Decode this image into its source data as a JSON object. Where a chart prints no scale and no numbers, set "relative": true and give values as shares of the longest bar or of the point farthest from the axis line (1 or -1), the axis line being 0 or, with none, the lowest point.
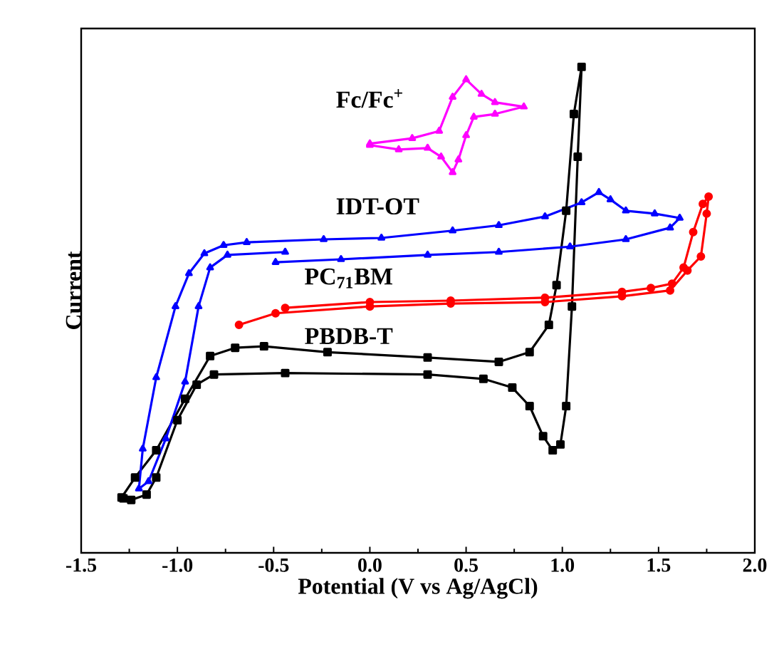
{
  "chart_data": {
    "type": "line",
    "xlabel": "Potential (V vs Ag/AgCl)",
    "ylabel": "Current",
    "relative": true,
    "tick_labels": "x",
    "xlim": [
      -1.5,
      2.0
    ],
    "xticks": [
      -1.5,
      {
        "value": -1.0,
        "label": "-1.0"
      },
      -0.5,
      {
        "value": 0.0,
        "label": "0.0"
      },
      0.5,
      {
        "value": 1.0,
        "label": "1.0"
      },
      1.5,
      {
        "value": 2.0,
        "label": "2.0"
      }
    ],
    "line_style": "solid",
    "series": [
      {
        "name": "PBDB-T",
        "color": "#000000",
        "marker": "square",
        "x": [
          -1.29,
          -1.22,
          -1.11,
          -0.96,
          -0.83,
          -0.7,
          -0.55,
          -0.22,
          0.3,
          0.67,
          0.83,
          0.93,
          0.97,
          1.02,
          1.06,
          1.1,
          1.08,
          1.05,
          1.02,
          0.99,
          0.95,
          0.9,
          0.83,
          0.74,
          0.59,
          0.3,
          -0.44,
          -0.81,
          -0.9,
          -1.0,
          -1.11,
          -1.16,
          -1.24,
          -1.28
        ],
        "values": [
          0.114,
          0.155,
          0.211,
          0.317,
          0.405,
          0.422,
          0.425,
          0.413,
          0.402,
          0.393,
          0.413,
          0.469,
          0.551,
          0.704,
          0.903,
          1.0,
          0.815,
          0.507,
          0.302,
          0.223,
          0.211,
          0.24,
          0.302,
          0.34,
          0.358,
          0.367,
          0.37,
          0.367,
          0.346,
          0.273,
          0.155,
          0.12,
          0.109,
          0.112
        ]
      },
      {
        "name": "PC$_{71}$BM",
        "color": "#ff0000",
        "marker": "circle",
        "x": [
          -0.68,
          -0.49,
          0.0,
          0.42,
          0.91,
          1.31,
          1.56,
          1.65,
          1.72,
          1.75,
          1.76,
          1.73,
          1.68,
          1.63,
          1.57,
          1.46,
          1.31,
          0.91,
          0.42,
          0.0,
          -0.44
        ],
        "values": [
          0.469,
          0.493,
          0.507,
          0.513,
          0.516,
          0.528,
          0.54,
          0.581,
          0.61,
          0.698,
          0.733,
          0.718,
          0.66,
          0.587,
          0.554,
          0.545,
          0.537,
          0.525,
          0.519,
          0.516,
          0.504
        ]
      },
      {
        "name": "IDT-OT",
        "color": "#0000ff",
        "marker": "triangle",
        "x": [
          -0.49,
          -0.15,
          0.3,
          0.67,
          1.04,
          1.33,
          1.56,
          1.61,
          1.48,
          1.33,
          1.25,
          1.19,
          1.1,
          0.91,
          0.67,
          0.43,
          0.06,
          -0.24,
          -0.64,
          -0.76,
          -0.86,
          -0.94,
          -1.01,
          -1.11,
          -1.18,
          -1.2,
          -1.15,
          -1.06,
          -0.96,
          -0.89,
          -0.83,
          -0.74,
          -0.44
        ],
        "values": [
          0.598,
          0.604,
          0.613,
          0.619,
          0.63,
          0.645,
          0.669,
          0.689,
          0.698,
          0.704,
          0.727,
          0.742,
          0.721,
          0.692,
          0.674,
          0.663,
          0.648,
          0.645,
          0.639,
          0.633,
          0.616,
          0.575,
          0.507,
          0.361,
          0.214,
          0.132,
          0.147,
          0.235,
          0.352,
          0.507,
          0.587,
          0.613,
          0.619
        ]
      },
      {
        "name": "Fc/Fc$^{+}$",
        "color": "#ff00ff",
        "marker": "triangle",
        "x": [
          0.0,
          0.15,
          0.3,
          0.37,
          0.43,
          0.46,
          0.5,
          0.54,
          0.65,
          0.8,
          0.65,
          0.58,
          0.5,
          0.43,
          0.36,
          0.22,
          0.0
        ],
        "values": [
          0.839,
          0.83,
          0.833,
          0.815,
          0.783,
          0.809,
          0.859,
          0.897,
          0.903,
          0.918,
          0.927,
          0.944,
          0.974,
          0.938,
          0.868,
          0.853,
          0.842
        ]
      }
    ]
  }
}
